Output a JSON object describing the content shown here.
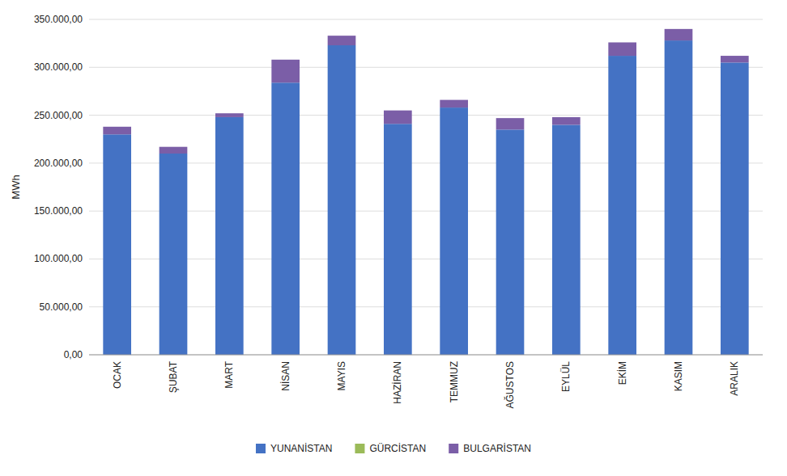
{
  "chart_data": {
    "type": "bar",
    "stacked": true,
    "categories": [
      "OCAK",
      "ŞUBAT",
      "MART",
      "NİSAN",
      "MAYIS",
      "HAZİRAN",
      "TEMMUZ",
      "AĞUSTOS",
      "EYLÜL",
      "EKİM",
      "KASIM",
      "ARALIK"
    ],
    "series": [
      {
        "name": "YUNANİSTAN",
        "color": "#4472C4",
        "values": [
          230000,
          210000,
          248000,
          284000,
          323000,
          241000,
          258000,
          235000,
          240000,
          312000,
          328000,
          305000
        ]
      },
      {
        "name": "GÜRCİSTAN",
        "color": "#9BBB59",
        "values": [
          0,
          0,
          0,
          0,
          0,
          0,
          0,
          0,
          0,
          0,
          0,
          0
        ]
      },
      {
        "name": "BULGARİSTAN",
        "color": "#7B5EA7",
        "values": [
          8000,
          7000,
          4000,
          24000,
          10000,
          14000,
          8000,
          12000,
          8000,
          14000,
          12000,
          7000
        ]
      }
    ],
    "y_label": "MWh",
    "ylim": [
      0,
      350000
    ],
    "yticks": [
      {
        "value": 0,
        "label": "0,00"
      },
      {
        "value": 50000,
        "label": "50.000,00"
      },
      {
        "value": 100000,
        "label": "100.000,00"
      },
      {
        "value": 150000,
        "label": "150.000,00"
      },
      {
        "value": 200000,
        "label": "200.000,00"
      },
      {
        "value": 250000,
        "label": "250.000,00"
      },
      {
        "value": 300000,
        "label": "300.000,00"
      },
      {
        "value": 350000,
        "label": "350.000,00"
      }
    ],
    "grid": true,
    "legend": "bottom"
  }
}
